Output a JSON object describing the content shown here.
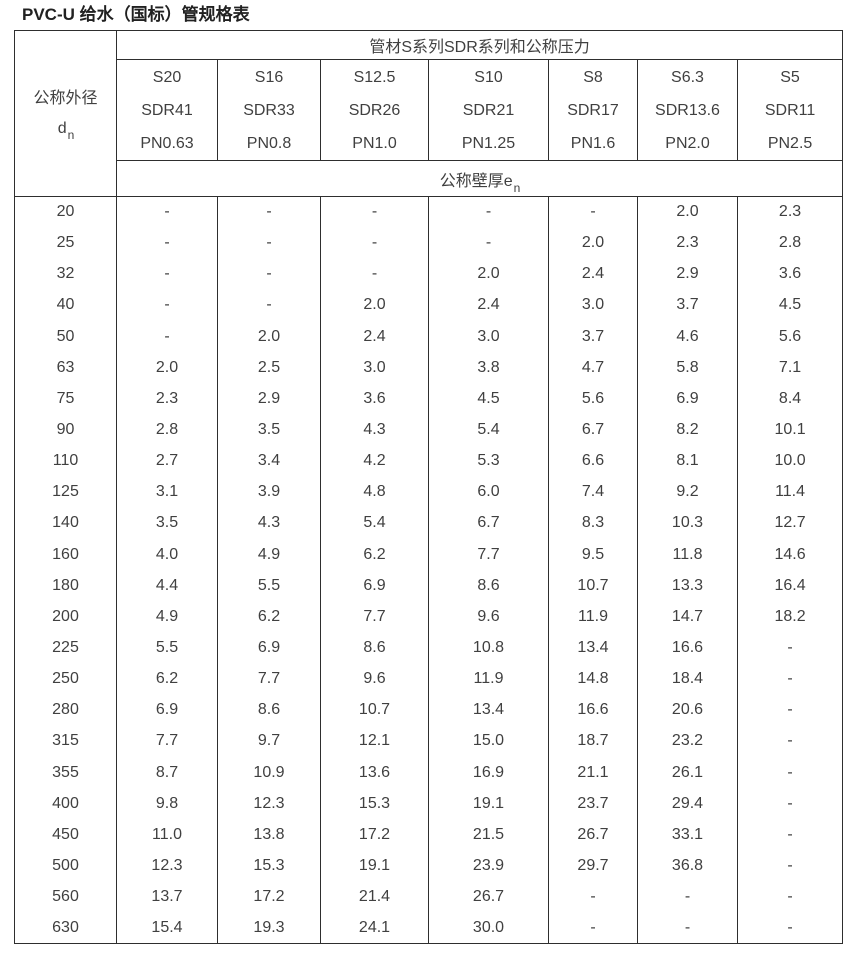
{
  "title": "PVC-U 给水（国标）管规格表",
  "colors": {
    "background": "#ffffff",
    "border": "#2e2e2e",
    "text": "#404040",
    "title_text": "#212121"
  },
  "table": {
    "corner": {
      "line1": "公称外径",
      "symbol": "d",
      "sub": "n"
    },
    "series_header": "管材S系列SDR系列和公称压力",
    "wall_header": {
      "text": "公称壁厚e",
      "sub": "n"
    },
    "columns": [
      {
        "s": "S20",
        "sdr": "SDR41",
        "pn": "PN0.63"
      },
      {
        "s": "S16",
        "sdr": "SDR33",
        "pn": "PN0.8"
      },
      {
        "s": "S12.5",
        "sdr": "SDR26",
        "pn": "PN1.0"
      },
      {
        "s": "S10",
        "sdr": "SDR21",
        "pn": "PN1.25"
      },
      {
        "s": "S8",
        "sdr": "SDR17",
        "pn": "PN1.6"
      },
      {
        "s": "S6.3",
        "sdr": "SDR13.6",
        "pn": "PN2.0"
      },
      {
        "s": "S5",
        "sdr": "SDR11",
        "pn": "PN2.5"
      }
    ],
    "rows": [
      {
        "dn": "20",
        "values": [
          "-",
          "-",
          "-",
          "-",
          "-",
          "2.0",
          "2.3"
        ]
      },
      {
        "dn": "25",
        "values": [
          "-",
          "-",
          "-",
          "-",
          "2.0",
          "2.3",
          "2.8"
        ]
      },
      {
        "dn": "32",
        "values": [
          "-",
          "-",
          "-",
          "2.0",
          "2.4",
          "2.9",
          "3.6"
        ]
      },
      {
        "dn": "40",
        "values": [
          "-",
          "-",
          "2.0",
          "2.4",
          "3.0",
          "3.7",
          "4.5"
        ]
      },
      {
        "dn": "50",
        "values": [
          "-",
          "2.0",
          "2.4",
          "3.0",
          "3.7",
          "4.6",
          "5.6"
        ]
      },
      {
        "dn": "63",
        "values": [
          "2.0",
          "2.5",
          "3.0",
          "3.8",
          "4.7",
          "5.8",
          "7.1"
        ]
      },
      {
        "dn": "75",
        "values": [
          "2.3",
          "2.9",
          "3.6",
          "4.5",
          "5.6",
          "6.9",
          "8.4"
        ]
      },
      {
        "dn": "90",
        "values": [
          "2.8",
          "3.5",
          "4.3",
          "5.4",
          "6.7",
          "8.2",
          "10.1"
        ]
      },
      {
        "dn": "110",
        "values": [
          "2.7",
          "3.4",
          "4.2",
          "5.3",
          "6.6",
          "8.1",
          "10.0"
        ]
      },
      {
        "dn": "125",
        "values": [
          "3.1",
          "3.9",
          "4.8",
          "6.0",
          "7.4",
          "9.2",
          "11.4"
        ]
      },
      {
        "dn": "140",
        "values": [
          "3.5",
          "4.3",
          "5.4",
          "6.7",
          "8.3",
          "10.3",
          "12.7"
        ]
      },
      {
        "dn": "160",
        "values": [
          "4.0",
          "4.9",
          "6.2",
          "7.7",
          "9.5",
          "11.8",
          "14.6"
        ]
      },
      {
        "dn": "180",
        "values": [
          "4.4",
          "5.5",
          "6.9",
          "8.6",
          "10.7",
          "13.3",
          "16.4"
        ]
      },
      {
        "dn": "200",
        "values": [
          "4.9",
          "6.2",
          "7.7",
          "9.6",
          "11.9",
          "14.7",
          "18.2"
        ]
      },
      {
        "dn": "225",
        "values": [
          "5.5",
          "6.9",
          "8.6",
          "10.8",
          "13.4",
          "16.6",
          "-"
        ]
      },
      {
        "dn": "250",
        "values": [
          "6.2",
          "7.7",
          "9.6",
          "11.9",
          "14.8",
          "18.4",
          "-"
        ]
      },
      {
        "dn": "280",
        "values": [
          "6.9",
          "8.6",
          "10.7",
          "13.4",
          "16.6",
          "20.6",
          "-"
        ]
      },
      {
        "dn": "315",
        "values": [
          "7.7",
          "9.7",
          "12.1",
          "15.0",
          "18.7",
          "23.2",
          "-"
        ]
      },
      {
        "dn": "355",
        "values": [
          "8.7",
          "10.9",
          "13.6",
          "16.9",
          "21.1",
          "26.1",
          "-"
        ]
      },
      {
        "dn": "400",
        "values": [
          "9.8",
          "12.3",
          "15.3",
          "19.1",
          "23.7",
          "29.4",
          "-"
        ]
      },
      {
        "dn": "450",
        "values": [
          "11.0",
          "13.8",
          "17.2",
          "21.5",
          "26.7",
          "33.1",
          "-"
        ]
      },
      {
        "dn": "500",
        "values": [
          "12.3",
          "15.3",
          "19.1",
          "23.9",
          "29.7",
          "36.8",
          "-"
        ]
      },
      {
        "dn": "560",
        "values": [
          "13.7",
          "17.2",
          "21.4",
          "26.7",
          "-",
          "-",
          "-"
        ]
      },
      {
        "dn": "630",
        "values": [
          "15.4",
          "19.3",
          "24.1",
          "30.0",
          "-",
          "-",
          "-"
        ]
      }
    ]
  }
}
